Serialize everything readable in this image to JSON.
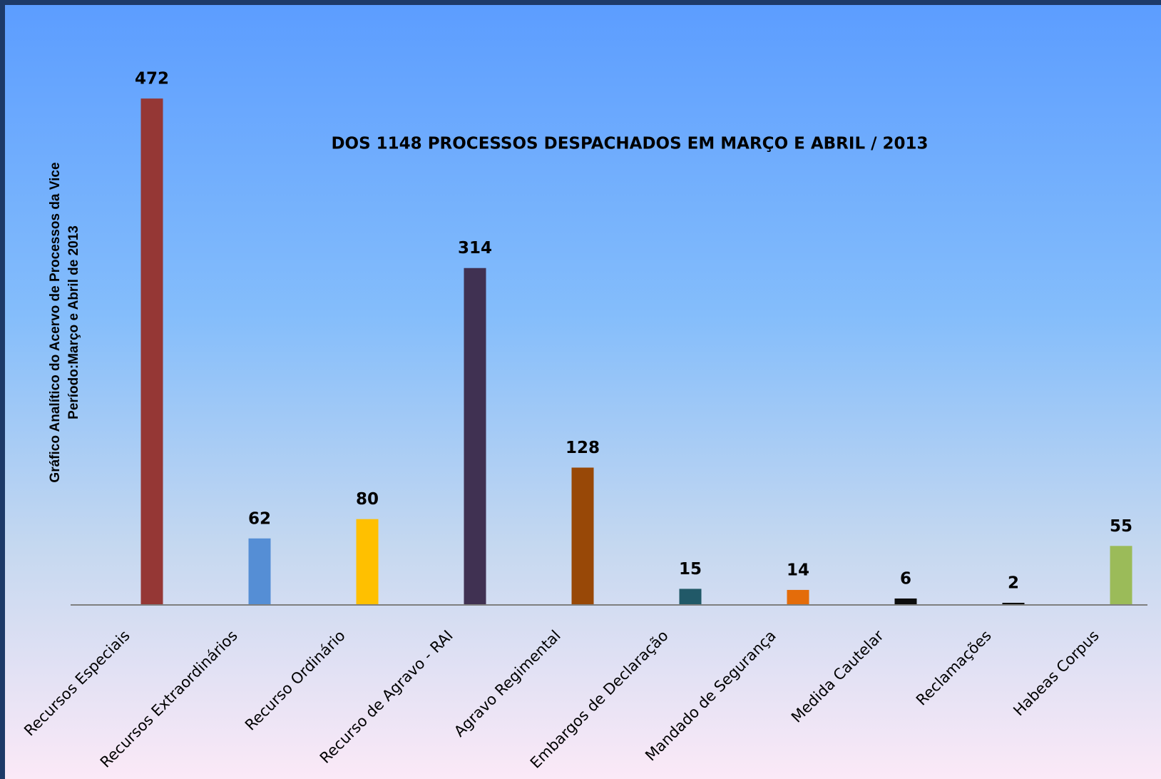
{
  "chart_data": {
    "type": "bar",
    "title": "DOS 1148 PROCESSOS DESPACHADOS EM MARÇO E ABRIL / 2013",
    "ylabel": [
      "Gráfico Analítico  do Acervo de Processos da Vice",
      "Período:Março e Abril de 2013"
    ],
    "categories": [
      "Recursos Especiais",
      "Recursos Extraordinários",
      "Recurso Ordinário",
      "Recurso de Agravo - RAI",
      "Agravo Regimental",
      "Embargos de Declaração",
      "Mandado de Segurança",
      "Medida Cautelar",
      "Reclamações",
      "Habeas Corpus"
    ],
    "values": [
      472,
      62,
      80,
      314,
      128,
      15,
      14,
      6,
      2,
      55
    ],
    "colors": [
      "#953735",
      "#558ed5",
      "#ffc000",
      "#403152",
      "#984807",
      "#215968",
      "#e46c0a",
      "#0d0d0d",
      "#0d0d0d",
      "#9bbb59"
    ],
    "ylim": [
      0,
      500
    ]
  }
}
